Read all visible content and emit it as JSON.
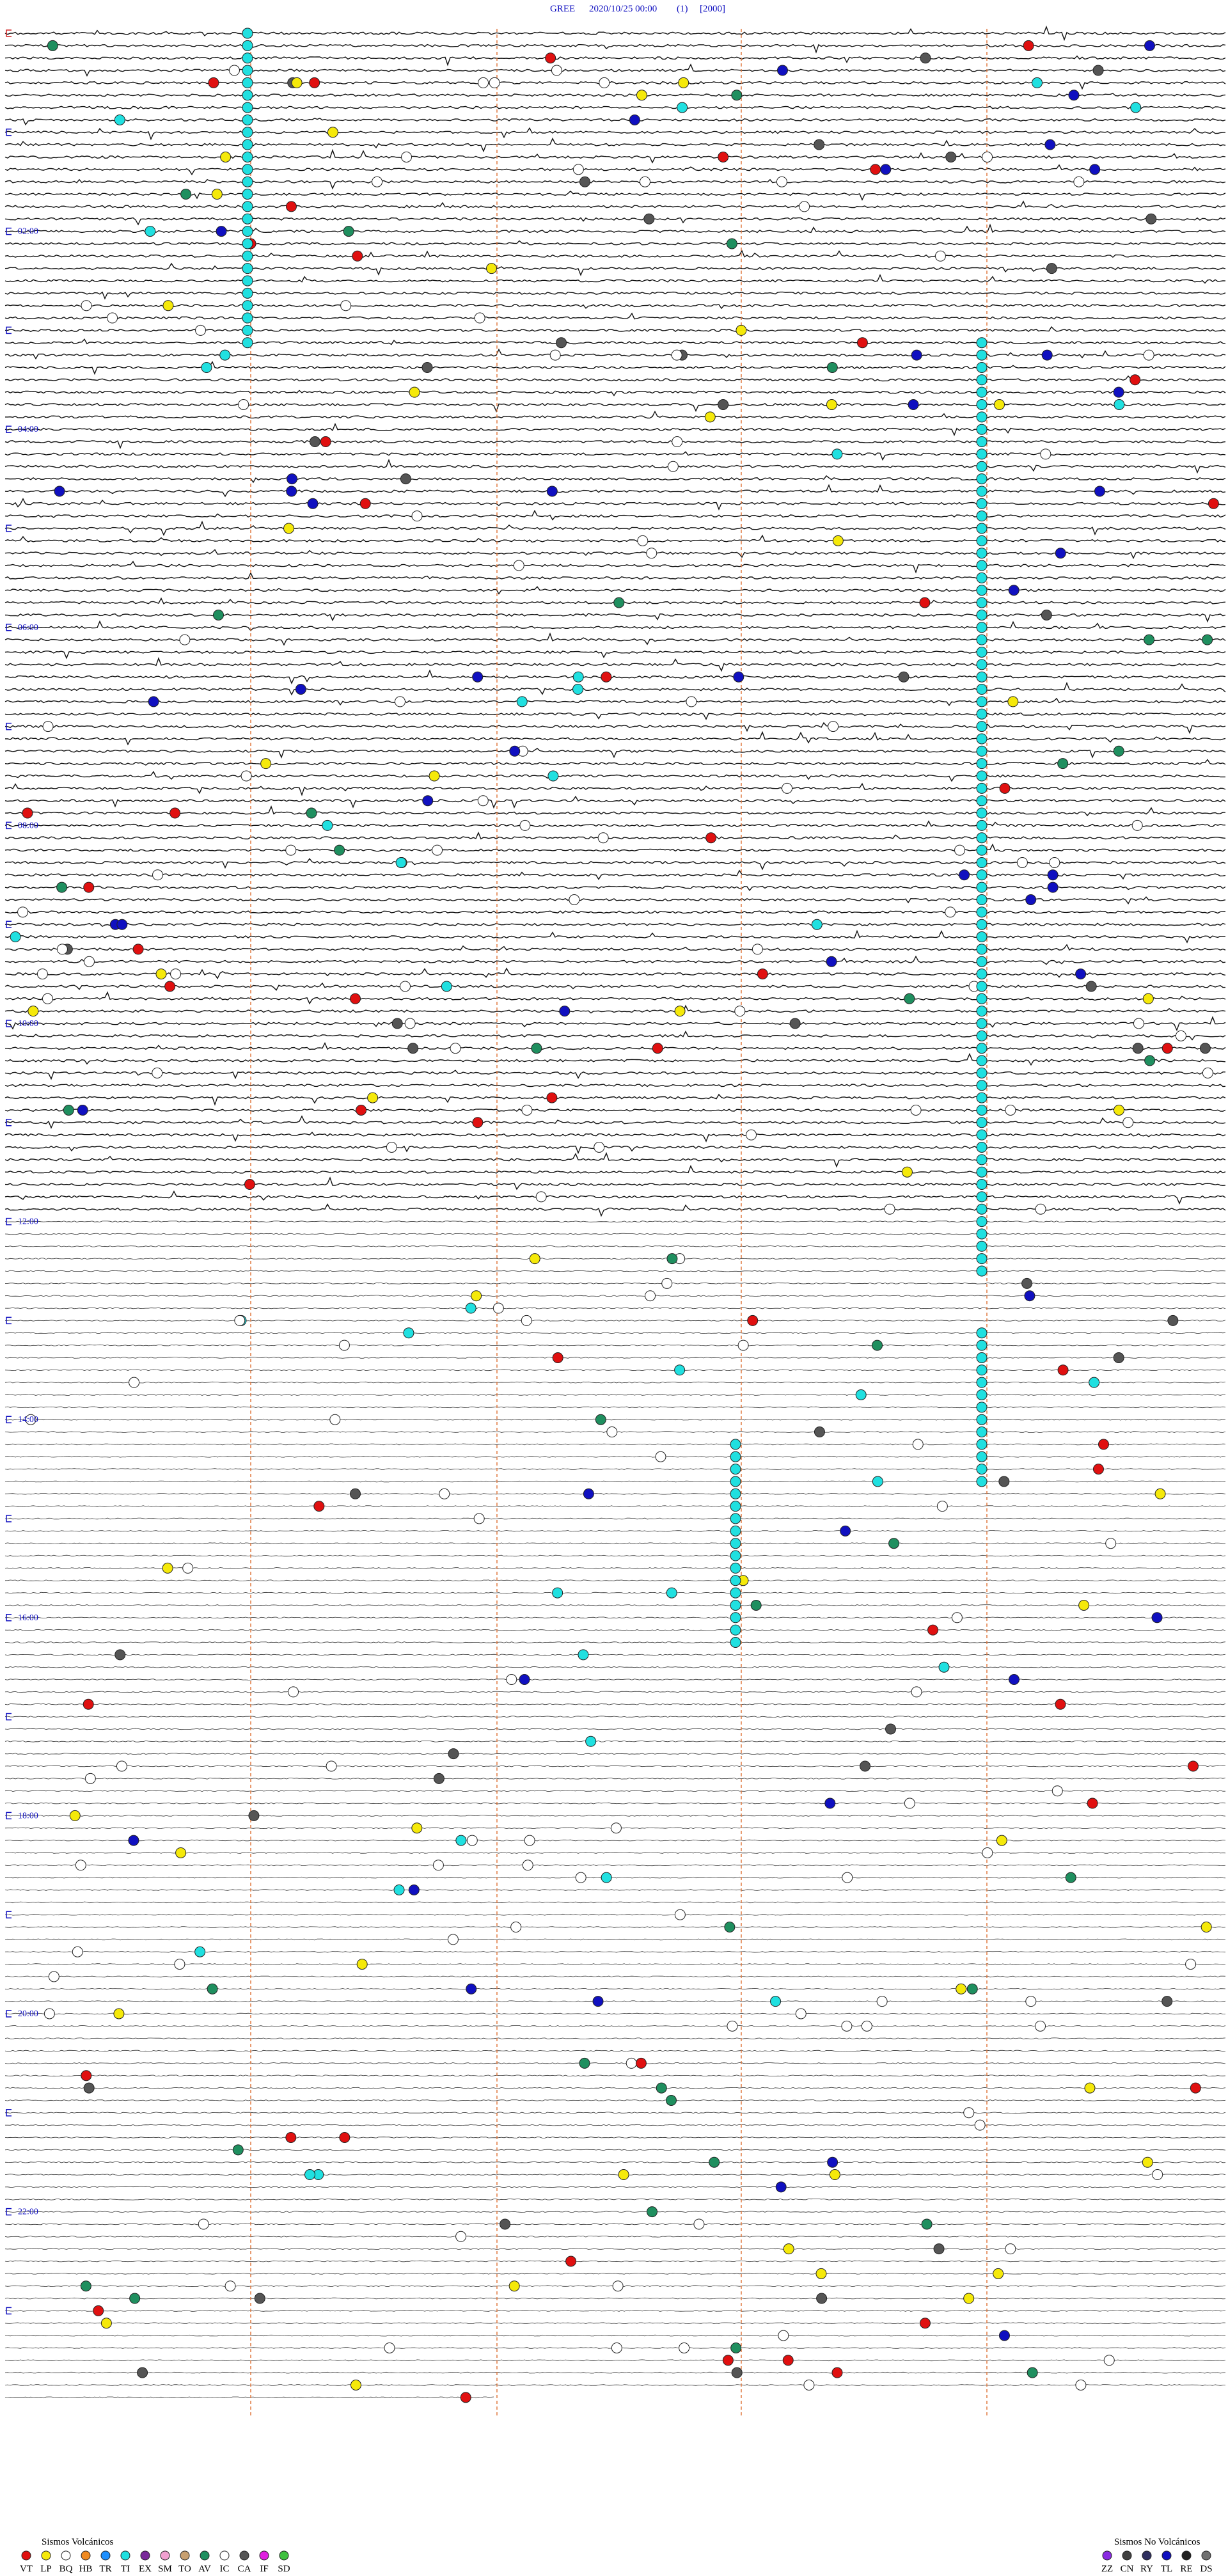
{
  "header": {
    "station": "GREE",
    "datetime": "2020/10/25 00:00",
    "channel": "(1)",
    "scale": "[2000]"
  },
  "time_labels": [
    "02:00",
    "04:00",
    "06:00",
    "08:00",
    "10:00",
    "12:00",
    "14:00",
    "16:00",
    "18:00",
    "20:00",
    "22:00"
  ],
  "legend": {
    "volcanic": {
      "title": "Sismos Volcánicos",
      "items": [
        {
          "code": "VT",
          "color": "#e01010"
        },
        {
          "code": "LP",
          "color": "#f5e90a"
        },
        {
          "code": "BQ",
          "color": "#ffffff"
        },
        {
          "code": "HB",
          "color": "#f08a20"
        },
        {
          "code": "TR",
          "color": "#1e90ff"
        },
        {
          "code": "TI",
          "color": "#20e0e0"
        },
        {
          "code": "EX",
          "color": "#7a2a9a"
        },
        {
          "code": "SM",
          "color": "#f0a0d0"
        },
        {
          "code": "TO",
          "color": "#c8a070"
        },
        {
          "code": "AV",
          "color": "#1f8f5f"
        },
        {
          "code": "IC",
          "color": "#ffffff"
        },
        {
          "code": "CA",
          "color": "#555555"
        },
        {
          "code": "IF",
          "color": "#e020e0"
        },
        {
          "code": "SD",
          "color": "#40c040"
        }
      ]
    },
    "non_volcanic": {
      "title": "Sismos No Volcánicos",
      "items": [
        {
          "code": "ZZ",
          "color": "#8a2be2"
        },
        {
          "code": "CN",
          "color": "#404040"
        },
        {
          "code": "RY",
          "color": "#303060"
        },
        {
          "code": "TL",
          "color": "#1010c0"
        },
        {
          "code": "RE",
          "color": "#202020"
        },
        {
          "code": "DS",
          "color": "#707070"
        }
      ]
    }
  }
}
